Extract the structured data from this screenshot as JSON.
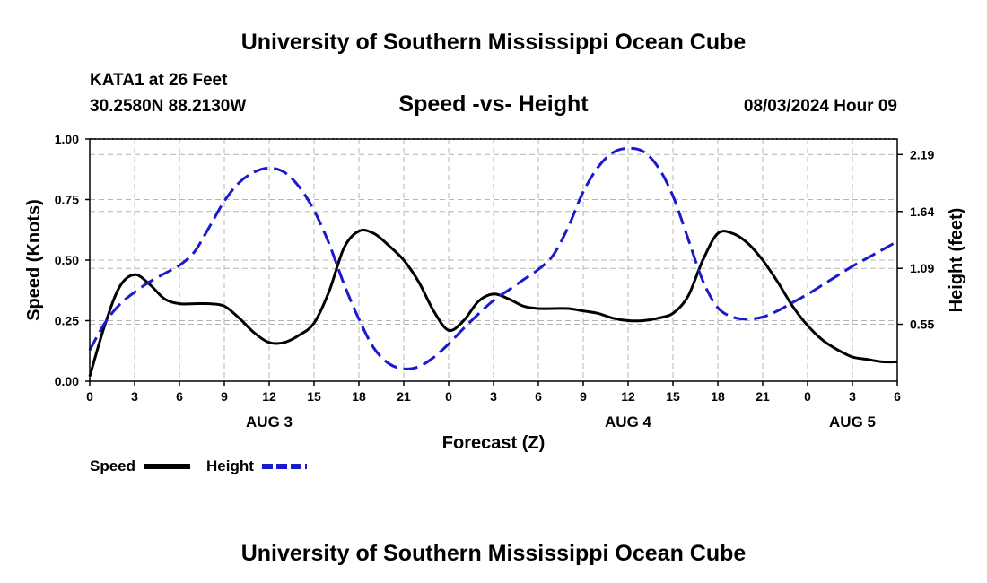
{
  "header": {
    "title": "University of Southern Mississippi Ocean Cube",
    "station": "KATA1 at 26 Feet",
    "coords": "30.2580N  88.2130W",
    "plot_title": "Speed -vs- Height",
    "datetime": "08/03/2024 Hour 09"
  },
  "footer": {
    "title": "University of Southern Mississippi Ocean Cube"
  },
  "colors": {
    "speed": "#000000",
    "height": "#1a1acc",
    "grid": "#b4b4b4",
    "axis": "#000000"
  },
  "chart_data": {
    "type": "line",
    "title": "Speed -vs- Height",
    "xlabel": "Forecast (Z)",
    "ylabel": "Speed (Knots)",
    "y2label": "Height (feet)",
    "x_range_hours": [
      0,
      54
    ],
    "x_ticks": [
      {
        "hour": 0,
        "label": "0"
      },
      {
        "hour": 3,
        "label": "3"
      },
      {
        "hour": 6,
        "label": "6"
      },
      {
        "hour": 9,
        "label": "9"
      },
      {
        "hour": 12,
        "label": "12"
      },
      {
        "hour": 15,
        "label": "15"
      },
      {
        "hour": 18,
        "label": "18"
      },
      {
        "hour": 21,
        "label": "21"
      },
      {
        "hour": 24,
        "label": "0"
      },
      {
        "hour": 27,
        "label": "3"
      },
      {
        "hour": 30,
        "label": "6"
      },
      {
        "hour": 33,
        "label": "9"
      },
      {
        "hour": 36,
        "label": "12"
      },
      {
        "hour": 39,
        "label": "15"
      },
      {
        "hour": 42,
        "label": "18"
      },
      {
        "hour": 45,
        "label": "21"
      },
      {
        "hour": 48,
        "label": "0"
      },
      {
        "hour": 51,
        "label": "3"
      },
      {
        "hour": 54,
        "label": "6"
      }
    ],
    "date_labels": [
      {
        "hour": 12,
        "label": "AUG 3"
      },
      {
        "hour": 36,
        "label": "AUG 4"
      },
      {
        "hour": 51,
        "label": "AUG 5"
      }
    ],
    "ylim": [
      0,
      1
    ],
    "y_ticks": [
      {
        "value": 0,
        "label": "0.00"
      },
      {
        "value": 0.25,
        "label": "0.25"
      },
      {
        "value": 0.5,
        "label": "0.50"
      },
      {
        "value": 0.75,
        "label": "0.75"
      },
      {
        "value": 1.0,
        "label": "1.00"
      }
    ],
    "y2lim": [
      0,
      2.34
    ],
    "y2_ticks": [
      {
        "value": 0.55,
        "label": "0.55"
      },
      {
        "value": 1.09,
        "label": "1.09"
      },
      {
        "value": 1.64,
        "label": "1.64"
      },
      {
        "value": 2.19,
        "label": "2.19"
      }
    ],
    "series": [
      {
        "name": "Speed",
        "axis": "left",
        "style": "solid",
        "color": "#000000",
        "x": [
          0,
          1,
          2,
          3,
          4,
          5,
          6,
          7,
          8,
          9,
          10,
          11,
          12,
          13,
          14,
          15,
          16,
          17,
          18,
          19,
          20,
          21,
          22,
          23,
          24,
          25,
          26,
          27,
          28,
          29,
          30,
          31,
          32,
          33,
          34,
          35,
          36,
          37,
          38,
          39,
          40,
          41,
          42,
          43,
          44,
          45,
          46,
          47,
          48,
          49,
          50,
          51,
          52,
          53,
          54
        ],
        "values": [
          0.02,
          0.23,
          0.39,
          0.44,
          0.4,
          0.34,
          0.32,
          0.32,
          0.32,
          0.31,
          0.26,
          0.2,
          0.16,
          0.16,
          0.19,
          0.24,
          0.37,
          0.55,
          0.62,
          0.61,
          0.56,
          0.5,
          0.41,
          0.29,
          0.21,
          0.25,
          0.33,
          0.36,
          0.34,
          0.31,
          0.3,
          0.3,
          0.3,
          0.29,
          0.28,
          0.26,
          0.25,
          0.25,
          0.26,
          0.28,
          0.35,
          0.5,
          0.61,
          0.61,
          0.57,
          0.5,
          0.41,
          0.31,
          0.23,
          0.17,
          0.13,
          0.1,
          0.09,
          0.08,
          0.08
        ]
      },
      {
        "name": "Height",
        "axis": "right",
        "style": "dashed",
        "color": "#1a1acc",
        "x": [
          0,
          1,
          2,
          3,
          4,
          5,
          6,
          7,
          8,
          9,
          10,
          11,
          12,
          13,
          14,
          15,
          16,
          17,
          18,
          19,
          20,
          21,
          22,
          23,
          24,
          25,
          26,
          27,
          28,
          29,
          30,
          31,
          32,
          33,
          34,
          35,
          36,
          37,
          38,
          39,
          40,
          41,
          42,
          43,
          44,
          45,
          46,
          47,
          48,
          49,
          50,
          51,
          52,
          53,
          54
        ],
        "values": [
          0.3,
          0.56,
          0.74,
          0.86,
          0.96,
          1.04,
          1.12,
          1.25,
          1.49,
          1.74,
          1.92,
          2.02,
          2.06,
          2.02,
          1.88,
          1.65,
          1.33,
          0.94,
          0.6,
          0.32,
          0.17,
          0.12,
          0.14,
          0.23,
          0.36,
          0.51,
          0.65,
          0.78,
          0.88,
          0.98,
          1.08,
          1.22,
          1.49,
          1.83,
          2.07,
          2.21,
          2.25,
          2.22,
          2.07,
          1.79,
          1.38,
          0.97,
          0.71,
          0.62,
          0.6,
          0.62,
          0.68,
          0.76,
          0.84,
          0.93,
          1.02,
          1.11,
          1.19,
          1.27,
          1.35
        ]
      }
    ],
    "legend": [
      {
        "label": "Speed",
        "style": "solid"
      },
      {
        "label": "Height",
        "style": "dashed"
      }
    ],
    "legend_position": "bottom-left",
    "grid": true
  }
}
